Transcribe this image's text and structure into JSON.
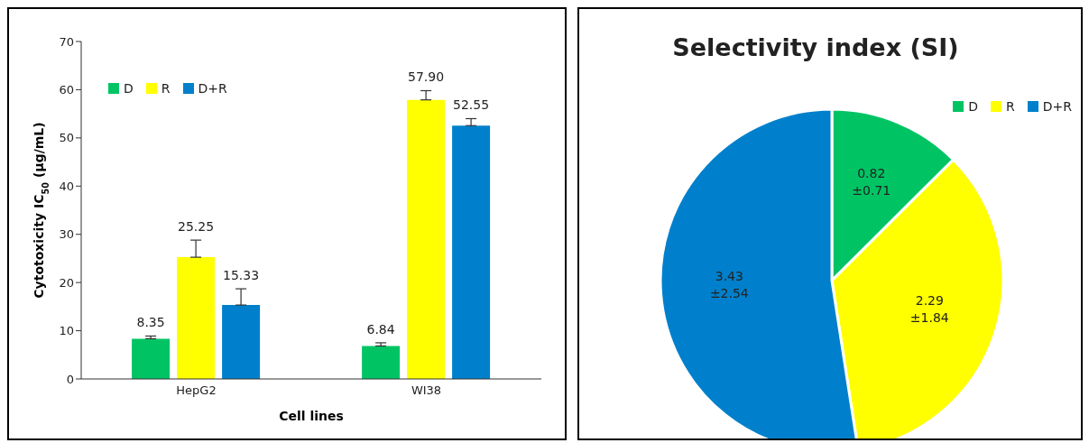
{
  "chart_data": [
    {
      "type": "bar",
      "xlabel": "Cell lines",
      "ylabel": "Cytotoxicity IC$_{50}$ (µg/mL)",
      "categories": [
        "HepG2",
        "WI38"
      ],
      "series": [
        {
          "name": "D",
          "color": "#00c464",
          "values": [
            8.35,
            6.84
          ],
          "errors": [
            [
              8.35,
              8.9
            ],
            [
              6.84,
              7.5
            ]
          ]
        },
        {
          "name": "R",
          "color": "#ffff00",
          "values": [
            25.25,
            57.9
          ],
          "errors": [
            [
              25.25,
              28.8
            ],
            [
              57.9,
              59.8
            ]
          ]
        },
        {
          "name": "D+R",
          "color": "#0080cc",
          "values": [
            15.33,
            52.55
          ],
          "errors": [
            [
              15.33,
              18.7
            ],
            [
              52.55,
              54.0
            ]
          ]
        }
      ],
      "value_labels": [
        [
          "8.35",
          "6.84"
        ],
        [
          "25.25",
          "57.90"
        ],
        [
          "15.33",
          "52.55"
        ]
      ],
      "ylim": [
        0,
        70
      ],
      "yticks": [
        0,
        10,
        20,
        30,
        40,
        50,
        60,
        70
      ],
      "grid": false,
      "legend": "top left"
    },
    {
      "type": "pie",
      "title": "Selectivity index (SI)",
      "categories": [
        "D",
        "R",
        "D+R"
      ],
      "values": [
        0.82,
        2.29,
        3.43
      ],
      "colors": [
        "#00c464",
        "#ffff00",
        "#0080cc"
      ],
      "value_labels": [
        "0.82\n±0.71",
        "2.29\n±1.84",
        "3.43\n±2.54"
      ],
      "legend": "top right"
    }
  ]
}
